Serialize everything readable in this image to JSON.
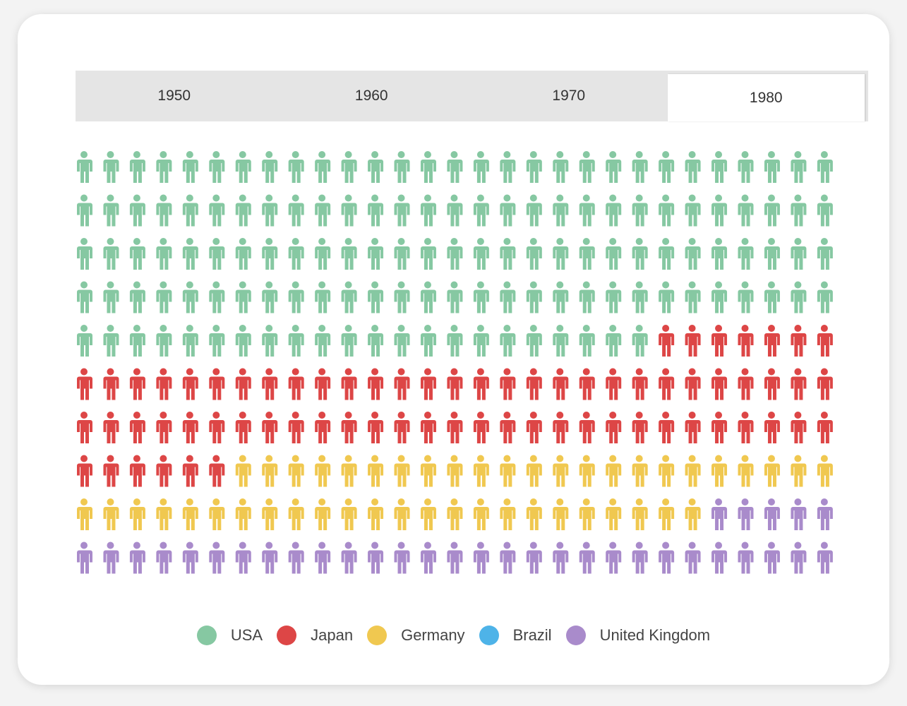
{
  "tabs": [
    {
      "label": "1950",
      "active": false
    },
    {
      "label": "1960",
      "active": false
    },
    {
      "label": "1970",
      "active": false
    },
    {
      "label": "1980",
      "active": true
    }
  ],
  "chart_data": {
    "type": "pictogram",
    "title": "",
    "selected_year": "1980",
    "columns": 29,
    "rows": 10,
    "categories": [
      "USA",
      "Japan",
      "Germany",
      "Brazil",
      "United Kingdom"
    ],
    "values": [
      138,
      71,
      47,
      0,
      34
    ],
    "colors": [
      "#86c8a2",
      "#dd4646",
      "#f0c850",
      "#4eb3e8",
      "#a98bcb"
    ],
    "legend_position": "bottom"
  }
}
